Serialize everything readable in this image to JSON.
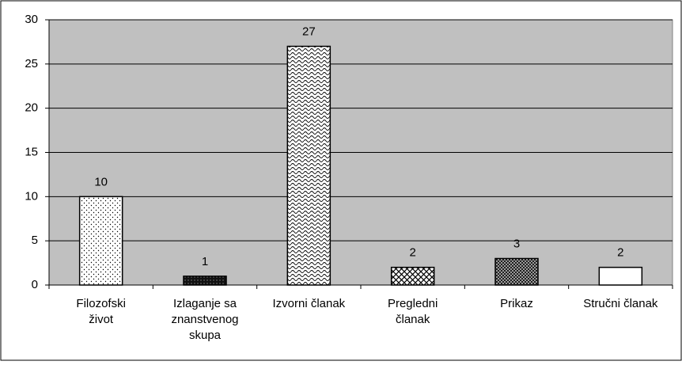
{
  "chart_data": {
    "type": "bar",
    "categories": [
      "Filozofski život",
      "Izlaganje sa znanstvenog skupa",
      "Izvorni članak",
      "Pregledni članak",
      "Prikaz",
      "Stručni članak"
    ],
    "values": [
      10,
      1,
      27,
      2,
      3,
      2
    ],
    "ylim": [
      0,
      30
    ],
    "yticks": [
      0,
      5,
      10,
      15,
      20,
      25,
      30
    ],
    "grid": true,
    "plot_background": "#c0c0c0"
  }
}
